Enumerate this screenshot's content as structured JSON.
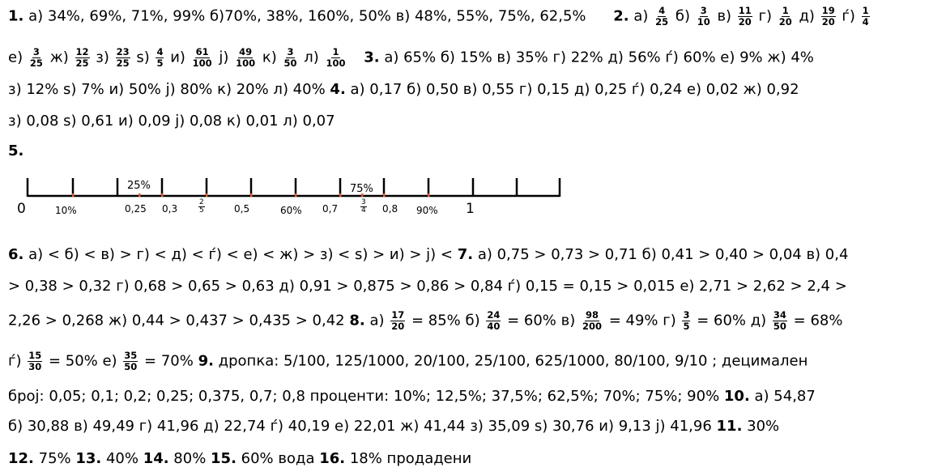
{
  "p1": {
    "n": "1.",
    "t": " а) 34%, 69%, 71%, 99%   б)70%, 38%, 160%, 50%   в) 48%, 55%, 75%, 62,5%",
    "n2": "2.",
    "pre_a": " а) ",
    "a": {
      "n": "4",
      "d": "25"
    },
    "pre_b": " б) ",
    "b": {
      "n": "3",
      "d": "10"
    },
    "pre_v": "  в) ",
    "v": {
      "n": "11",
      "d": "20"
    },
    "pre_g": " г) ",
    "g": {
      "n": "1",
      "d": "20"
    },
    "pre_d": "  д) ",
    "d": {
      "n": "19",
      "d": "20"
    },
    "pre_gj": "  ѓ) ",
    "gj": {
      "n": "1",
      "d": "4"
    }
  },
  "p2": {
    "pre_e": "е) ",
    "e": {
      "n": "3",
      "d": "25"
    },
    "pre_zh": "  ж) ",
    "zh": {
      "n": "12",
      "d": "25"
    },
    "pre_z": "  з) ",
    "z": {
      "n": "23",
      "d": "25"
    },
    "pre_s": "  ѕ) ",
    "s": {
      "n": "4",
      "d": "5"
    },
    "pre_i": "  и) ",
    "i": {
      "n": "61",
      "d": "100"
    },
    "pre_j": "  ј) ",
    "j": {
      "n": "49",
      "d": "100"
    },
    "pre_k": "  к) ",
    "k": {
      "n": "3",
      "d": "50"
    },
    "pre_l": "  л) ",
    "l": {
      "n": "1",
      "d": "100"
    },
    "n3": "3.",
    "t3": " а) 65%  б) 15%  в) 35%  г) 22%  д) 56%  ѓ) 60%  е) 9%  ж) 4%"
  },
  "p3": {
    "t": "з) 12%  ѕ) 7%  и) 50%  ј) 80%  к) 20%  л) 40%   ",
    "n4": "4.",
    "t4": " а) 0,17  б) 0,50  в) 0,55  г) 0,15  д) 0,25  ѓ) 0,24  е) 0,02  ж) 0,92"
  },
  "p4": {
    "t": "з) 0,08  ѕ) 0,61  и) 0,09  ј) 0,08  к) 0,01  л) 0,07"
  },
  "p5": {
    "n5": "5."
  },
  "numberline": {
    "top_25": "25%",
    "top_75": "75%",
    "zero": "0",
    "ten": "10%",
    "l025": "0,25",
    "l03": "0,3",
    "two_fifths": {
      "n": "2",
      "d": "5"
    },
    "l05": "0,5",
    "l60": "60%",
    "l07": "0,7",
    "three_quarters": {
      "n": "3",
      "d": "4"
    },
    "l08": "0,8",
    "l90": "90%",
    "one": "1",
    "accent": "#e05a2b"
  },
  "p6": {
    "n6": "6.",
    "t6": " а) <  б) <  в) >  г) <  д) <  ѓ) <  е) <  ж) >  з) <  ѕ) >  и) >  ј) <   ",
    "n7": "7.",
    "t7": " а) 0,75 > 0,73 > 0,71  б) 0,41 > 0,40 > 0,04  в) 0,4"
  },
  "p7": {
    "t": "> 0,38 > 0,32  г) 0,68 > 0,65 > 0,63  д) 0,91 > 0,875 > 0,86 > 0,84  ѓ) 0,15 = 0,15 > 0,015  е) 2,71 > 2,62 > 2,4 >"
  },
  "p8": {
    "t": "2,26 > 0,268   ж) 0,44 > 0,437 > 0,435 > 0,42  ",
    "n8": "8.",
    "pre_a": " а) ",
    "a": {
      "n": "17",
      "d": "20"
    },
    "post_a": "  = 85%   б) ",
    "b": {
      "n": "24",
      "d": "40"
    },
    "post_b": " = 60%   в) ",
    "v": {
      "n": "98",
      "d": "200"
    },
    "post_v": " = 49%   г) ",
    "g": {
      "n": "3",
      "d": "5"
    },
    "post_g": " = 60%   д) ",
    "d": {
      "n": "34",
      "d": "50"
    },
    "post_d": " = 68%"
  },
  "p9": {
    "pre_gj": "ѓ) ",
    "gj": {
      "n": "15",
      "d": "30"
    },
    "post_gj": " = 50%   е) ",
    "e": {
      "n": "35",
      "d": "50"
    },
    "post_e": " = 70%   ",
    "n9": "9.",
    "t9": " дропка:  5/100, 125/1000, 20/100, 25/100, 625/1000, 80/100, 9/10 ;    децимален"
  },
  "p10": {
    "t": "број: 0,05; 0,1; 0,2; 0,25; 0,375, 0,7; 0,8    проценти: 10%; 12,5%; 37,5%; 62,5%; 70%; 75%; 90%  ",
    "n10": "10.",
    "t10": " а) 54,87"
  },
  "p11": {
    "t": "б) 30,88  в) 49,49  г) 41,96  д) 22,74  ѓ) 40,19  е) 22,01  ж) 41,44  з) 35,09  ѕ) 30,76  и) 9,13  ј) 41,96     ",
    "n11": "11.",
    "t11": " 30%"
  },
  "p12": {
    "n12": "12.",
    "t12": " 75%    ",
    "n13": "13.",
    "t13": " 40%    ",
    "n14": "14.",
    "t14": " 80%    ",
    "n15": "15.",
    "t15": " 60% вода    ",
    "n16": "16.",
    "t16": " 18% продадени"
  }
}
